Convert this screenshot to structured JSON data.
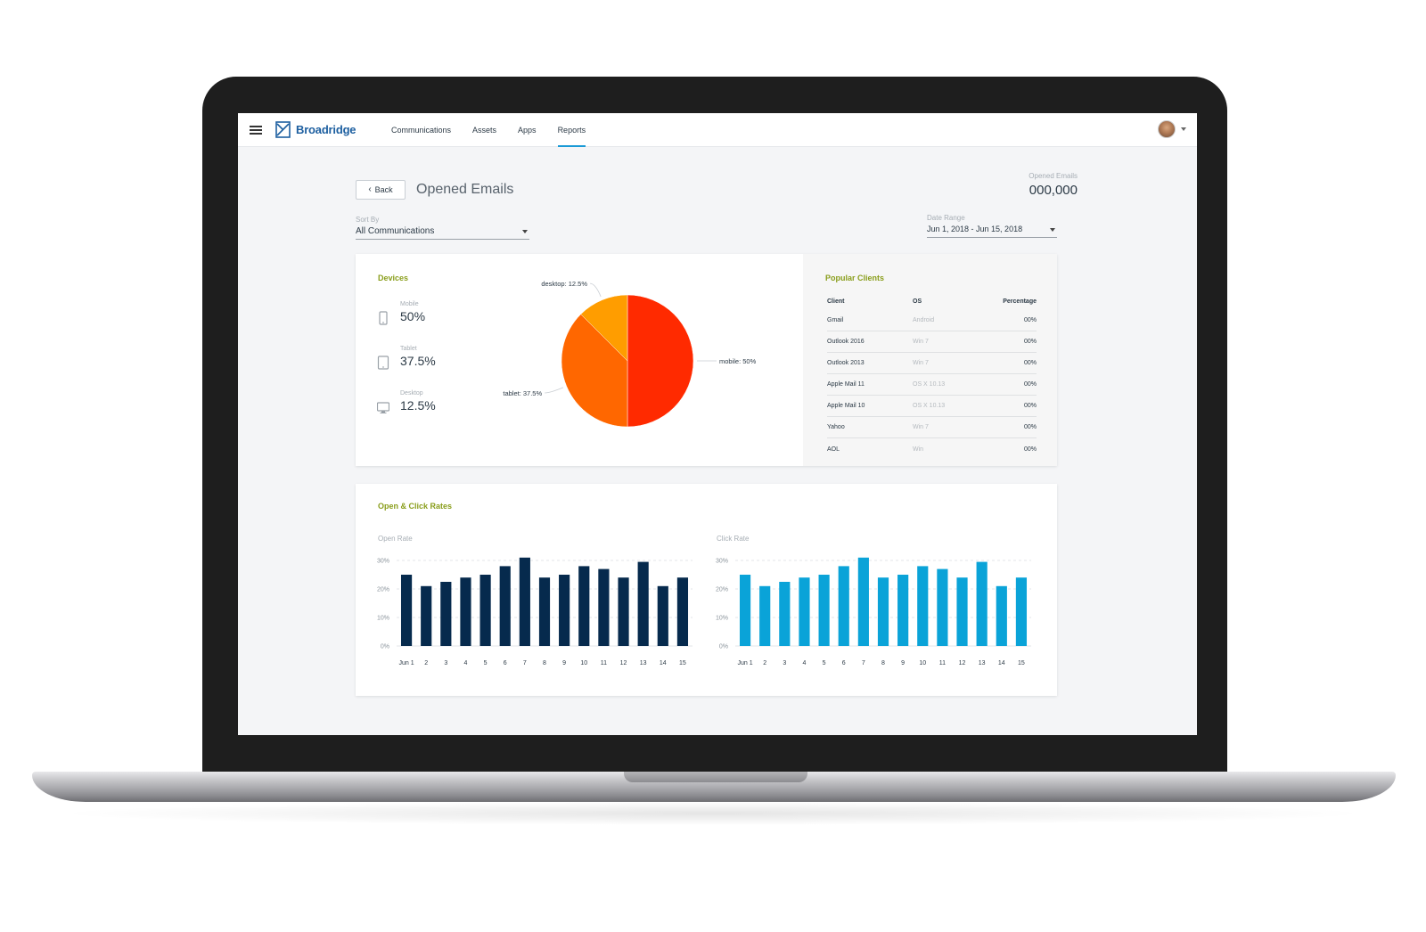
{
  "nav": {
    "brand": "Broadridge",
    "items": [
      {
        "label": "Communications",
        "active": false
      },
      {
        "label": "Assets",
        "active": false
      },
      {
        "label": "Apps",
        "active": false
      },
      {
        "label": "Reports",
        "active": true
      }
    ]
  },
  "header": {
    "back_label": "Back",
    "title": "Opened Emails",
    "opened_label": "Opened Emails",
    "opened_value": "000,000"
  },
  "sort": {
    "label": "Sort By",
    "value": "All Communications"
  },
  "date_range": {
    "label": "Date Range",
    "value": "Jun 1, 2018  -  Jun 15, 2018"
  },
  "devices": {
    "title": "Devices",
    "items": [
      {
        "label": "Mobile",
        "value": "50%",
        "icon": "mobile-icon"
      },
      {
        "label": "Tablet",
        "value": "37.5%",
        "icon": "tablet-icon"
      },
      {
        "label": "Desktop",
        "value": "12.5%",
        "icon": "desktop-icon"
      }
    ]
  },
  "clients": {
    "title": "Popular Clients",
    "columns": [
      "Client",
      "OS",
      "Percentage"
    ],
    "rows": [
      [
        "Gmail",
        "Android",
        "00%"
      ],
      [
        "Outlook 2016",
        "Win 7",
        "00%"
      ],
      [
        "Outlook 2013",
        "Win 7",
        "00%"
      ],
      [
        "Apple Mail 11",
        "OS X 10.13",
        "00%"
      ],
      [
        "Apple Mail 10",
        "OS X 10.13",
        "00%"
      ],
      [
        "Yahoo",
        "Win 7",
        "00%"
      ],
      [
        "AOL",
        "Win",
        "00%"
      ]
    ]
  },
  "rates": {
    "title": "Open & Click Rates",
    "open_label": "Open Rate",
    "click_label": "Click Rate"
  },
  "colors": {
    "accent": "#8a9e1c",
    "nav_active": "#1a9ad6",
    "mobile": "#ff2a00",
    "tablet": "#ff6700",
    "desktop": "#ff9d00",
    "open_bar": "#062a4d",
    "click_bar": "#0aa3d8"
  },
  "chart_data": [
    {
      "type": "pie",
      "title": "Devices",
      "slices": [
        {
          "label": "mobile: 50%",
          "value": 50
        },
        {
          "label": "tablet: 37.5%",
          "value": 37.5
        },
        {
          "label": "desktop: 12.5%",
          "value": 12.5
        }
      ]
    },
    {
      "type": "bar",
      "title": "Open Rate",
      "categories": [
        "Jun 1",
        "2",
        "3",
        "4",
        "5",
        "6",
        "7",
        "8",
        "9",
        "10",
        "11",
        "12",
        "13",
        "14",
        "15"
      ],
      "values": [
        25,
        21,
        22.5,
        24,
        25,
        28,
        31,
        24,
        25,
        28,
        27,
        24,
        29.5,
        21,
        24
      ],
      "ylim": [
        0,
        30
      ],
      "yticks": [
        "0%",
        "10%",
        "20%",
        "30%"
      ],
      "grid": true
    },
    {
      "type": "bar",
      "title": "Click Rate",
      "categories": [
        "Jun 1",
        "2",
        "3",
        "4",
        "5",
        "6",
        "7",
        "8",
        "9",
        "10",
        "11",
        "12",
        "13",
        "14",
        "15"
      ],
      "values": [
        25,
        21,
        22.5,
        24,
        25,
        28,
        31,
        24,
        25,
        28,
        27,
        24,
        29.5,
        21,
        24
      ],
      "ylim": [
        0,
        30
      ],
      "yticks": [
        "0%",
        "10%",
        "20%",
        "30%"
      ],
      "grid": true
    }
  ]
}
